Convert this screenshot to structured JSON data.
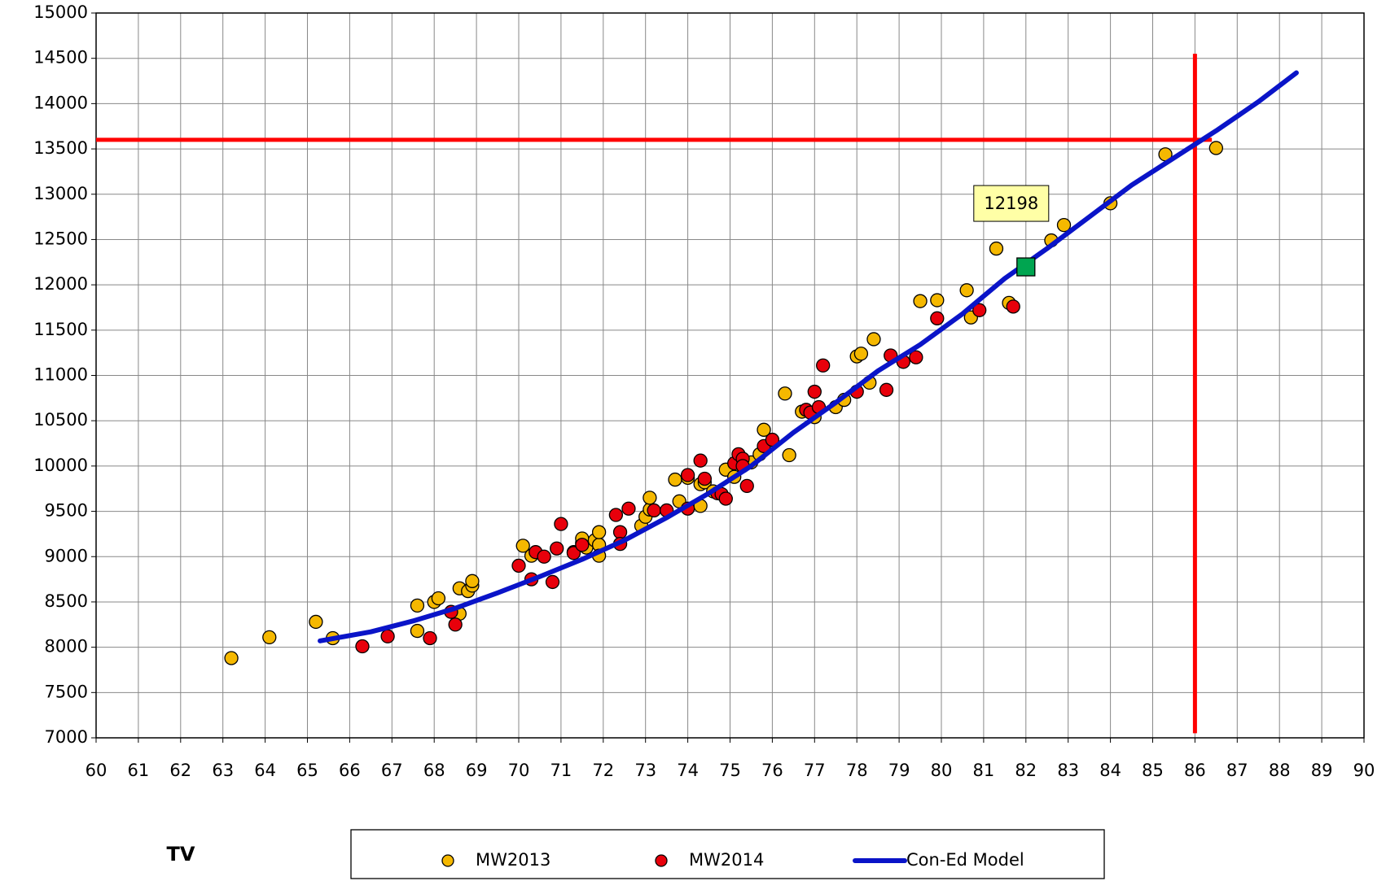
{
  "chart_data": {
    "type": "scatter",
    "x_label": "TV",
    "xlim": [
      60,
      90
    ],
    "xticks": [
      60,
      61,
      62,
      63,
      64,
      65,
      66,
      67,
      68,
      69,
      70,
      71,
      72,
      73,
      74,
      75,
      76,
      77,
      78,
      79,
      80,
      81,
      82,
      83,
      84,
      85,
      86,
      87,
      88,
      89,
      90
    ],
    "ylim": [
      7000,
      15000
    ],
    "yticks": [
      7000,
      7500,
      8000,
      8500,
      9000,
      9500,
      10000,
      10500,
      11000,
      11500,
      12000,
      12500,
      13000,
      13500,
      14000,
      14500,
      15000
    ],
    "grid": true,
    "series": [
      {
        "name": "MW2013",
        "type": "scatter",
        "color": "#f5b800",
        "x": [
          63.2,
          64.1,
          65.2,
          65.6,
          67.6,
          67.6,
          68,
          68.1,
          68.6,
          68.6,
          68.8,
          68.9,
          68.9,
          70.1,
          70.3,
          71.3,
          71.5,
          71.5,
          71.6,
          71.8,
          71.9,
          71.9,
          71.9,
          72.9,
          73,
          73.1,
          73.1,
          73.7,
          73.8,
          74,
          74.3,
          74.3,
          74.4,
          74.6,
          74.9,
          75.1,
          75.2,
          75.3,
          75.5,
          75.7,
          75.8,
          76.3,
          76.4,
          76.7,
          77,
          77.5,
          77.7,
          78,
          78.1,
          78.3,
          78.4,
          79.5,
          79.9,
          80.6,
          80.7,
          81.3,
          81.6,
          82.6,
          82.9,
          84,
          85.3,
          86.5
        ],
        "values": [
          7880,
          8110,
          8280,
          8100,
          8460,
          8180,
          8500,
          8540,
          8370,
          8650,
          8620,
          8680,
          8730,
          9120,
          9010,
          9050,
          9150,
          9200,
          9100,
          9180,
          9130,
          9270,
          9010,
          9340,
          9440,
          9520,
          9650,
          9850,
          9610,
          9870,
          9560,
          9800,
          9820,
          9720,
          9960,
          9880,
          10050,
          10020,
          10040,
          10130,
          10400,
          10800,
          10120,
          10600,
          10540,
          10650,
          10730,
          11210,
          11240,
          10920,
          11400,
          11820,
          11830,
          11940,
          11640,
          12400,
          11800,
          12490,
          12660,
          12900,
          13440,
          13510
        ]
      },
      {
        "name": "MW2014",
        "type": "scatter",
        "color": "#e8000b",
        "x": [
          66.3,
          66.9,
          67.9,
          68.4,
          68.5,
          70,
          70.3,
          70.4,
          70.6,
          70.8,
          70.9,
          71,
          71.3,
          71.5,
          72.3,
          72.4,
          72.4,
          72.6,
          73.2,
          73.5,
          74,
          74,
          74.3,
          74.4,
          74.7,
          74.8,
          74.9,
          75.1,
          75.2,
          75.3,
          75.3,
          75.4,
          75.8,
          76,
          76.8,
          76.9,
          77,
          77.1,
          77.2,
          78,
          78.7,
          78.8,
          79.1,
          79.4,
          79.9,
          80.9,
          81.7
        ],
        "values": [
          8010,
          8120,
          8100,
          8390,
          8250,
          8900,
          8750,
          9050,
          9000,
          8720,
          9090,
          9360,
          9040,
          9130,
          9460,
          9270,
          9140,
          9530,
          9510,
          9510,
          9530,
          9900,
          10060,
          9860,
          9700,
          9690,
          9640,
          10030,
          10130,
          10080,
          10000,
          9780,
          10220,
          10290,
          10620,
          10590,
          10820,
          10650,
          11110,
          10820,
          10840,
          11220,
          11150,
          11200,
          11630,
          11720,
          11760
        ]
      },
      {
        "name": "Con-Ed Model",
        "type": "line",
        "color": "#0a14c8",
        "x": [
          65.3,
          66.5,
          67.5,
          68.5,
          69.5,
          70.5,
          71.5,
          72.5,
          73.5,
          74.5,
          75.5,
          76.5,
          77.5,
          78.5,
          79.5,
          80.5,
          81.5,
          82.5,
          83.5,
          84.5,
          85.5,
          86.5,
          87.5,
          88.4
        ],
        "values": [
          8070,
          8170,
          8290,
          8430,
          8600,
          8780,
          8970,
          9180,
          9430,
          9700,
          10000,
          10370,
          10700,
          11050,
          11340,
          11680,
          12070,
          12400,
          12750,
          13100,
          13400,
          13700,
          14020,
          14340
        ]
      }
    ],
    "reference_lines": [
      {
        "orientation": "horizontal",
        "y": 13600,
        "x": [
          60,
          86.4
        ],
        "color": "#ff0000"
      },
      {
        "orientation": "vertical",
        "x": 86,
        "y": [
          7050,
          14550
        ],
        "color": "#ff0000"
      }
    ],
    "highlight": {
      "x": 82,
      "y": 12198,
      "color": "#00a550"
    }
  }
}
